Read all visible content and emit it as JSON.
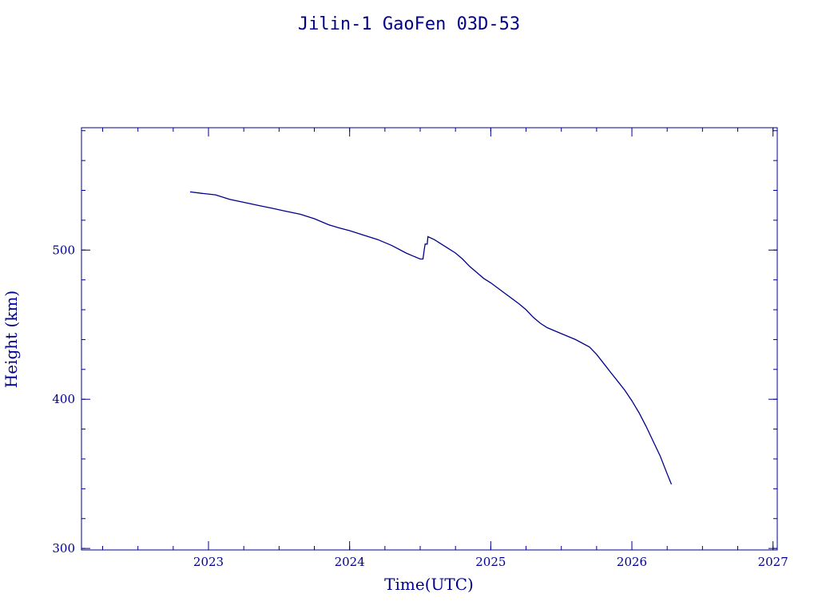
{
  "chart_data": {
    "type": "line",
    "title": "Jilin-1 GaoFen 03D-53",
    "xlabel": "Time(UTC)",
    "ylabel": "Height (km)",
    "xlim": [
      2022.1,
      2027.03
    ],
    "ylim": [
      299,
      582
    ],
    "grid": false,
    "x_ticks": [
      2023,
      2024,
      2025,
      2026,
      2027
    ],
    "x_tick_labels": [
      "2023",
      "2024",
      "2025",
      "2026",
      "2027"
    ],
    "y_ticks": [
      300,
      400,
      500
    ],
    "y_tick_labels": [
      "300",
      "400",
      "500"
    ],
    "x_minor_step": 0.25,
    "y_minor_step": 20,
    "color": "#00008b",
    "series": [
      {
        "x": [
          2022.87,
          2022.95,
          2023.05,
          2023.15,
          2023.2,
          2023.25,
          2023.35,
          2023.45,
          2023.55,
          2023.65,
          2023.75,
          2023.85,
          2023.92,
          2024.0,
          2024.1,
          2024.2,
          2024.3,
          2024.4,
          2024.45,
          2024.5,
          2024.52,
          2024.53,
          2024.535,
          2024.55,
          2024.555,
          2024.6,
          2024.65,
          2024.7,
          2024.75,
          2024.8,
          2024.85,
          2024.9,
          2024.95,
          2025.0,
          2025.1,
          2025.2,
          2025.25,
          2025.3,
          2025.35,
          2025.4,
          2025.5,
          2025.6,
          2025.7,
          2025.75,
          2025.8,
          2025.85,
          2025.9,
          2025.95,
          2026.0,
          2026.05,
          2026.1,
          2026.15,
          2026.2,
          2026.25,
          2026.28
        ],
        "y": [
          539,
          538,
          537,
          534,
          533,
          532,
          530,
          528,
          526,
          524,
          521,
          517,
          515,
          513,
          510,
          507,
          503,
          498,
          496,
          494,
          494,
          501,
          504,
          504,
          509,
          507,
          504,
          501,
          498,
          494,
          489,
          485,
          481,
          478,
          471,
          464,
          460,
          455,
          451,
          448,
          444,
          440,
          435,
          430,
          424,
          418,
          412,
          406,
          399,
          391,
          382,
          372,
          362,
          350,
          343
        ]
      }
    ]
  }
}
